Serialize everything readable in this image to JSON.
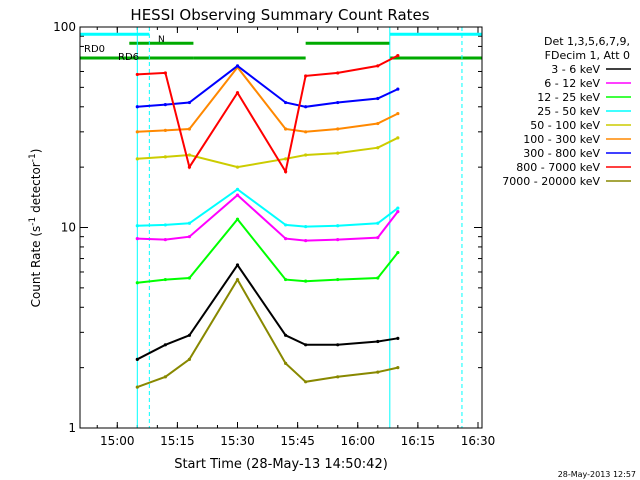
{
  "chart_data": {
    "type": "line",
    "title": "HESSI Observing Summary Count Rates",
    "xlabel": "Start Time (28-May-13 14:50:42)",
    "ylabel_main": "Count Rate (s",
    "ylabel_sup1": "-1",
    "ylabel_mid": " detector",
    "ylabel_sup2": "-1",
    "ylabel_end": ")",
    "ylabel": "Count Rate (s^-1 detector^-1)",
    "yscale": "log",
    "ylim": [
      1,
      100
    ],
    "y_ticks": [
      {
        "value": 1,
        "label": "1"
      },
      {
        "value": 10,
        "label": "10"
      },
      {
        "value": 100,
        "label": "100"
      }
    ],
    "xlim": [
      "14:50:42",
      "16:31:00"
    ],
    "x_ticks": [
      {
        "time": "15:00",
        "label": "15:00"
      },
      {
        "time": "15:15",
        "label": "15:15"
      },
      {
        "time": "15:30",
        "label": "15:30"
      },
      {
        "time": "15:45",
        "label": "15:45"
      },
      {
        "time": "16:00",
        "label": "16:00"
      },
      {
        "time": "16:15",
        "label": "16:15"
      },
      {
        "time": "16:30",
        "label": "16:30"
      }
    ],
    "legend_header": [
      "Det 1,3,5,6,7,9,",
      "FDecim 1, Att 0"
    ],
    "legend_position": "outside-right",
    "series": [
      {
        "name": "3 - 6 keV",
        "color": "#000000",
        "x": [
          "15:05",
          "15:12",
          "15:18",
          "15:30",
          "15:42",
          "15:47",
          "15:55",
          "16:05",
          "16:10"
        ],
        "y": [
          2.2,
          2.6,
          2.9,
          6.5,
          2.9,
          2.6,
          2.6,
          2.7,
          2.8
        ]
      },
      {
        "name": "6 - 12 keV",
        "color": "#ff00ff",
        "x": [
          "15:05",
          "15:12",
          "15:18",
          "15:30",
          "15:42",
          "15:47",
          "15:55",
          "16:05",
          "16:10"
        ],
        "y": [
          8.8,
          8.7,
          9.0,
          14.5,
          8.8,
          8.6,
          8.7,
          8.9,
          12.0
        ]
      },
      {
        "name": "12 - 25 keV",
        "color": "#00ff00",
        "x": [
          "15:05",
          "15:12",
          "15:18",
          "15:30",
          "15:42",
          "15:47",
          "15:55",
          "16:05",
          "16:10"
        ],
        "y": [
          5.3,
          5.5,
          5.6,
          11.0,
          5.5,
          5.4,
          5.5,
          5.6,
          7.5
        ]
      },
      {
        "name": "25 - 50 keV",
        "color": "#00ffff",
        "x": [
          "15:05",
          "15:12",
          "15:18",
          "15:30",
          "15:42",
          "15:47",
          "15:55",
          "16:05",
          "16:10"
        ],
        "y": [
          10.2,
          10.3,
          10.5,
          15.5,
          10.3,
          10.1,
          10.2,
          10.5,
          12.5
        ]
      },
      {
        "name": "50 - 100 keV",
        "color": "#cccc00",
        "x": [
          "15:05",
          "15:12",
          "15:18",
          "15:30",
          "15:42",
          "15:47",
          "15:55",
          "16:05",
          "16:10"
        ],
        "y": [
          22,
          22.5,
          23,
          20,
          22,
          23,
          23.5,
          25,
          28
        ]
      },
      {
        "name": "100 - 300 keV",
        "color": "#ff8800",
        "x": [
          "15:05",
          "15:12",
          "15:18",
          "15:30",
          "15:42",
          "15:47",
          "15:55",
          "16:05",
          "16:10"
        ],
        "y": [
          30,
          30.5,
          31,
          63,
          31,
          30,
          31,
          33,
          37
        ]
      },
      {
        "name": "300 - 800 keV",
        "color": "#0000ff",
        "x": [
          "15:05",
          "15:12",
          "15:18",
          "15:30",
          "15:42",
          "15:47",
          "15:55",
          "16:05",
          "16:10"
        ],
        "y": [
          40,
          41,
          42,
          64,
          42,
          40,
          42,
          44,
          49
        ]
      },
      {
        "name": "800 - 7000 keV",
        "color": "#ff0000",
        "x": [
          "15:05",
          "15:12",
          "15:18",
          "15:30",
          "15:42",
          "15:47",
          "15:55",
          "16:05",
          "16:10"
        ],
        "y": [
          58,
          59,
          20,
          47,
          19,
          57,
          59,
          64,
          72
        ]
      },
      {
        "name": "7000 - 20000 keV",
        "color": "#888800",
        "x": [
          "15:05",
          "15:12",
          "15:18",
          "15:30",
          "15:42",
          "15:47",
          "15:55",
          "16:05",
          "16:10"
        ],
        "y": [
          1.6,
          1.8,
          2.2,
          5.5,
          2.1,
          1.7,
          1.8,
          1.9,
          2.0
        ]
      }
    ],
    "annotations": [
      {
        "text": "RD0",
        "color": "#00aa00"
      },
      {
        "text": "RD6",
        "color": "#00aa00"
      },
      {
        "text": "N",
        "color": "#00ffff"
      }
    ]
  },
  "footer_timestamp": "28-May-2013 12:57"
}
